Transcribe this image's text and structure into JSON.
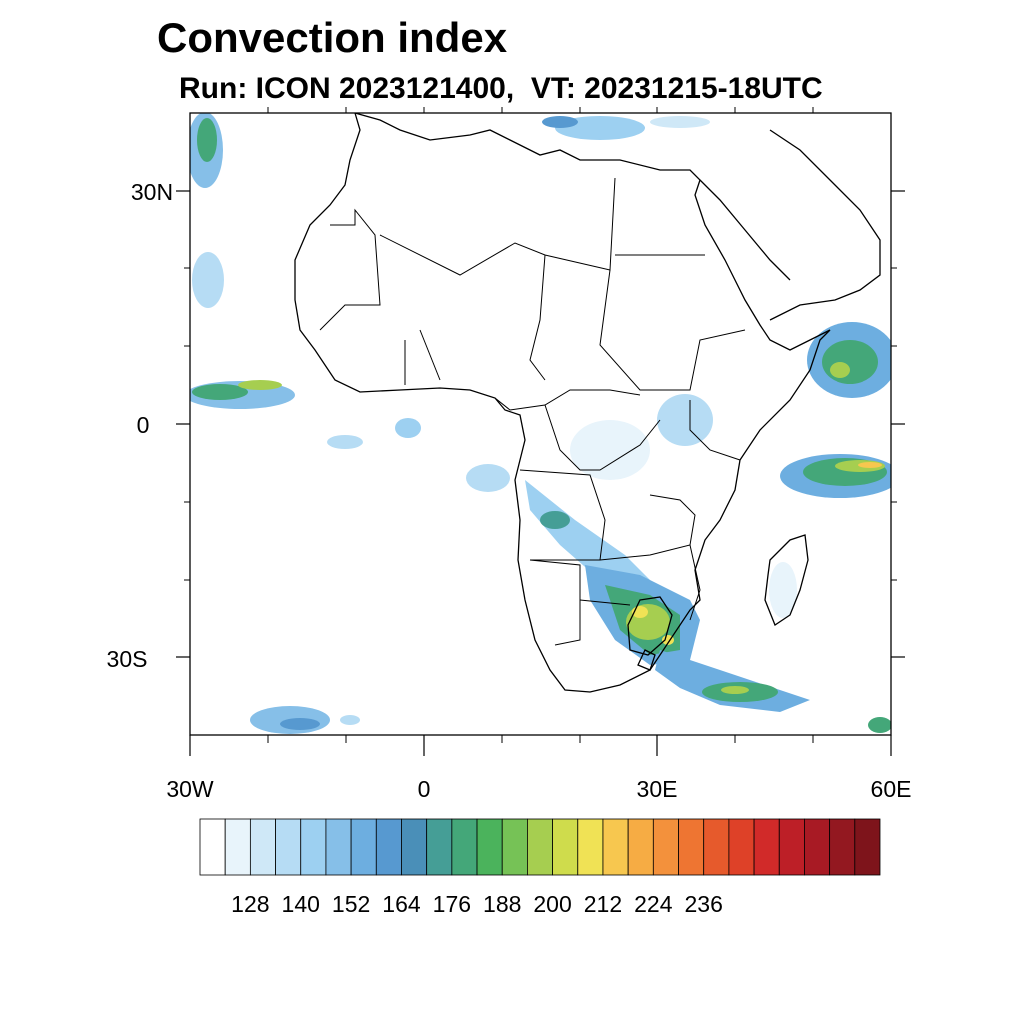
{
  "title": "Convection index",
  "subtitle": "Run: ICON 2023121400,  VT: 20231215-18UTC",
  "map": {
    "lon_range": [
      -30,
      60
    ],
    "lat_range": [
      -40,
      40
    ],
    "lat_ticks": [
      {
        "value": 30,
        "label": "30N"
      },
      {
        "value": 0,
        "label": "0"
      },
      {
        "value": -30,
        "label": "30S"
      }
    ],
    "lon_ticks": [
      {
        "value": -30,
        "label": "30W"
      },
      {
        "value": 0,
        "label": "0"
      },
      {
        "value": 30,
        "label": "30E"
      },
      {
        "value": 60,
        "label": "60E"
      }
    ]
  },
  "colorbar": {
    "colors": [
      "#ffffff",
      "#e8f4fb",
      "#cfe8f7",
      "#b6dcf4",
      "#9dd0f1",
      "#86bfe8",
      "#6daee0",
      "#5799d0",
      "#4a8fb8",
      "#459e96",
      "#44a779",
      "#4bb35c",
      "#76c256",
      "#a6ce50",
      "#cfdc4c",
      "#f0e255",
      "#f7c74f",
      "#f6ac44",
      "#f3913c",
      "#ee7532",
      "#e65a2c",
      "#de4128",
      "#d12a29",
      "#bd1f27",
      "#a81a24",
      "#931820",
      "#7e141b"
    ],
    "labels": [
      "128",
      "140",
      "152",
      "164",
      "176",
      "188",
      "200",
      "212",
      "224",
      "236"
    ]
  }
}
